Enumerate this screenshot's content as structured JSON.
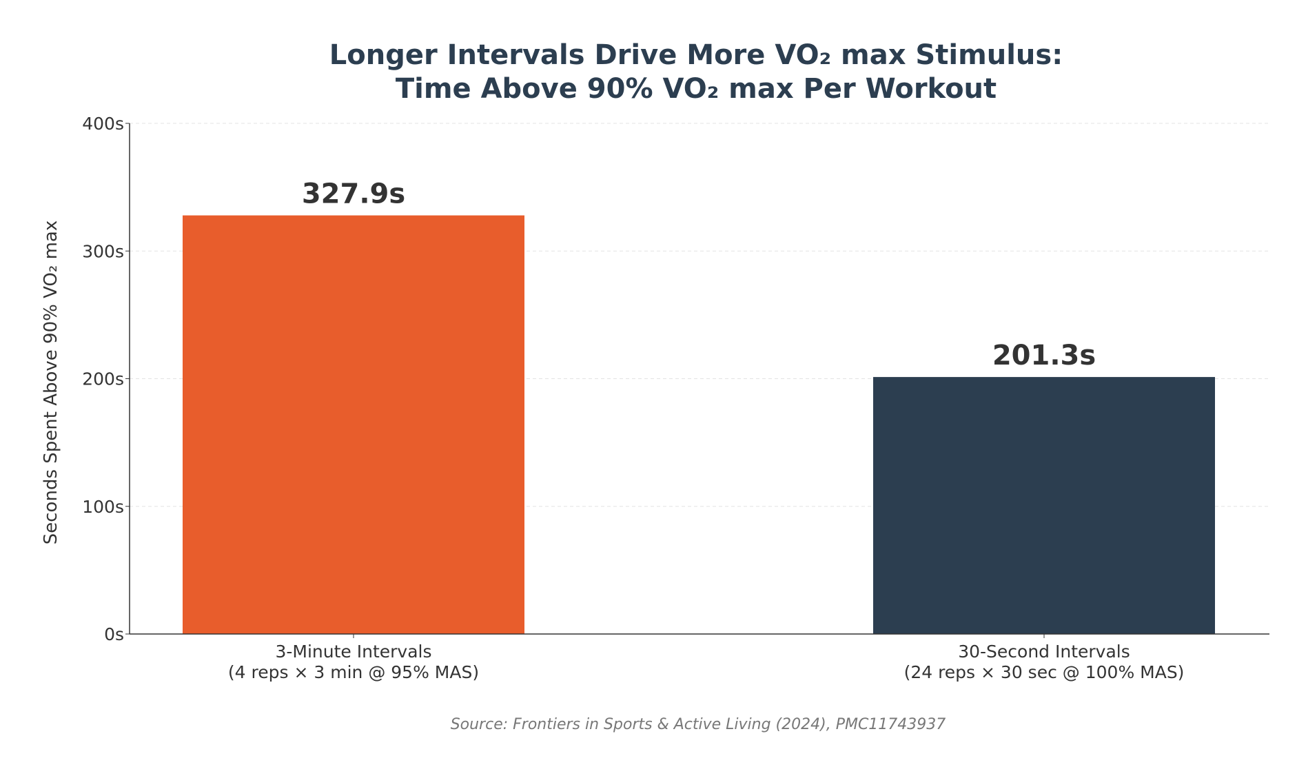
{
  "chart_data": {
    "type": "bar",
    "title": [
      "Longer Intervals Drive More VO₂ max Stimulus:",
      "Time Above 90% VO₂ max Per Workout"
    ],
    "categories": [
      [
        "3-Minute Intervals",
        "(4 reps × 3 min @ 95% MAS)"
      ],
      [
        "30-Second Intervals",
        "(24 reps × 30 sec @ 100% MAS)"
      ]
    ],
    "values": [
      327.9,
      201.3
    ],
    "data_labels": [
      "327.9s",
      "201.3s"
    ],
    "colors": [
      "#e85d2c",
      "#2c3e50"
    ],
    "xlabel": "",
    "ylabel": "Seconds Spent Above 90% VO₂ max",
    "ylim": [
      0,
      400
    ],
    "yticks": [
      0,
      100,
      200,
      300,
      400
    ],
    "ytick_labels": [
      "0s",
      "100s",
      "200s",
      "300s",
      "400s"
    ],
    "grid": "horizontal dashed",
    "source": "Source: Frontiers in Sports & Active Living (2024), PMC11743937"
  }
}
